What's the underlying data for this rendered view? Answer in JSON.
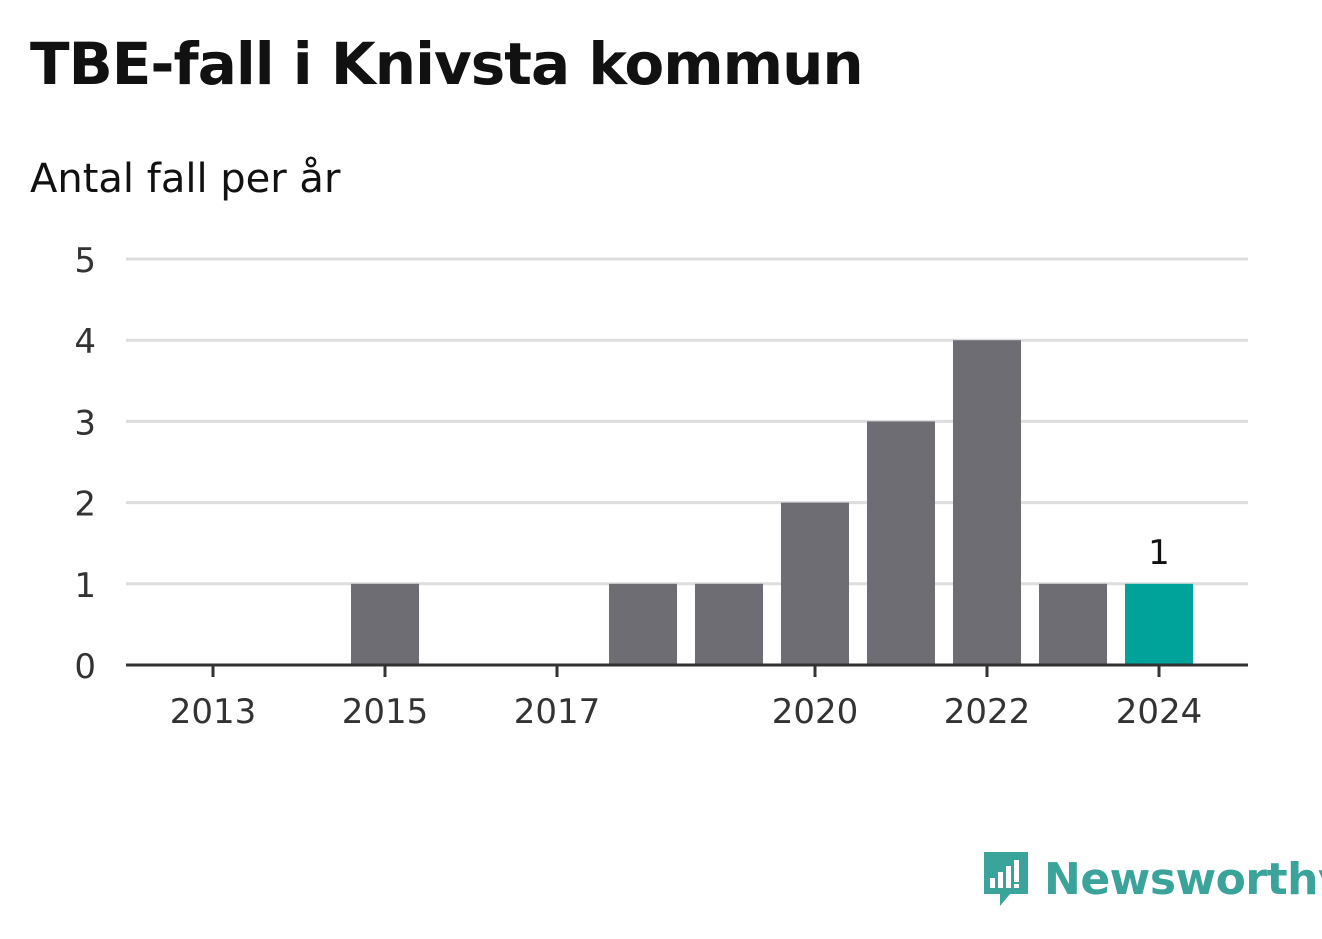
{
  "title": "TBE-fall i Knivsta kommun",
  "subtitle": "Antal fall per år",
  "brand": "Newsworthy",
  "colors": {
    "bar": "#6e6d74",
    "highlight": "#00a39a",
    "grid": "#dddddd",
    "axis": "#333333",
    "brand": "#3aa39a"
  },
  "chart_data": {
    "type": "bar",
    "categories": [
      "2013",
      "2014",
      "2015",
      "2016",
      "2017",
      "2018",
      "2019",
      "2020",
      "2021",
      "2022",
      "2023",
      "2024"
    ],
    "values": [
      0,
      0,
      1,
      0,
      0,
      1,
      1,
      2,
      3,
      4,
      1,
      1
    ],
    "highlight_index": 11,
    "x_tick_labels": [
      "2013",
      "2015",
      "2017",
      "2020",
      "2022",
      "2024"
    ],
    "y_ticks": [
      0,
      1,
      2,
      3,
      4,
      5
    ],
    "ylim": [
      0,
      5
    ],
    "grid": true,
    "data_labels": [
      {
        "category": "2024",
        "text": "1"
      }
    ]
  }
}
